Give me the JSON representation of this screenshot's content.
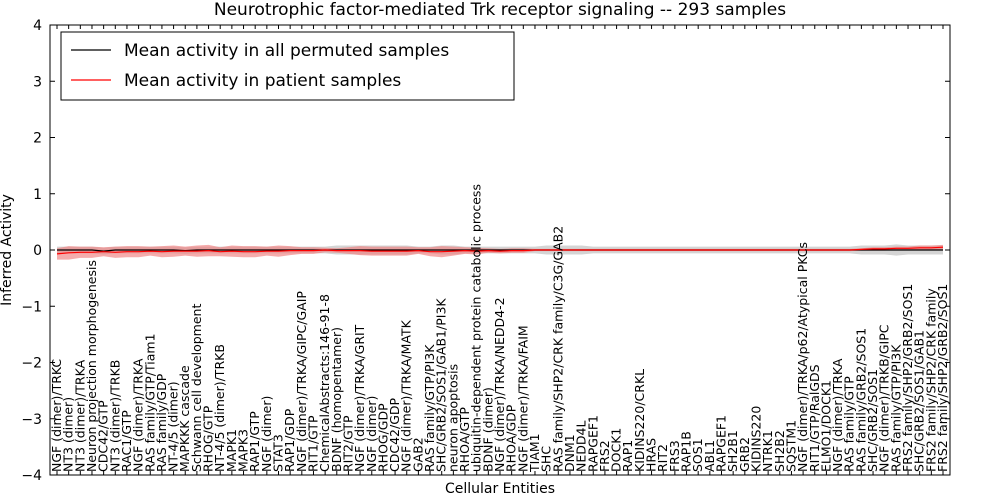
{
  "chart_data": {
    "type": "line",
    "title": "Neurotrophic factor-mediated Trk receptor signaling -- 293 samples",
    "xlabel": "Cellular Entities",
    "ylabel": "Inferred Activity",
    "ylim": [
      -4,
      4
    ],
    "yticks": [
      -4,
      -3,
      -2,
      -1,
      0,
      1,
      2,
      3,
      4
    ],
    "grid": false,
    "legend_position": "top-left",
    "colors": {
      "permuted": "#000000",
      "patient": "#ff0000",
      "patient_band": "#f08080",
      "permuted_band": "#b0b0b0"
    },
    "categories": [
      "NGF (dimer)/TRKC",
      "NT3 (dimer)",
      "NT3 (dimer)/TRKA",
      "Neuron projection morphogenesis",
      "CDC42/GTP",
      "NT3 (dimer)/TRKB",
      "RAC1/GTP",
      "NGF (dimer)/TRKA",
      "RAS family/GTP/Tiam1",
      "RAS family/GDP",
      "NT-4/5 (dimer)",
      "MAPKKK cascade",
      "Schwann cell development",
      "RHOG/GTP",
      "NT-4/5 (dimer)/TRKB",
      "MAPK1",
      "MAPK3",
      "RAP1/GTP",
      "NGF (dimer)",
      "STAT3",
      "RAP1/GDP",
      "NGF (dimer)/TRKA/GIPC/GAIP",
      "RIT1/GTP",
      "ChemicalAbstracts:146-91-8",
      "BDNF (homopentamer)",
      "RIT2/GTP",
      "NGF (dimer)/TRKA/GRIT",
      "NGF (dimer)",
      "RHOG/GDP",
      "CDC42/GDP",
      "NGF (dimer)/TRKA/MATK",
      "GAB2",
      "RAS family/GTP/PI3K",
      "SHC/GRB2/SOS1/GAB1/PI3K",
      "neuron apoptosis",
      "RHOA/GTP",
      "ubiquitin-dependent protein catabolic process",
      "BDNF (dimer)",
      "NGF (dimer)/TRKA/NEDD4-2",
      "RHOA/GDP",
      "NGF (dimer)/TRKA/FAIM",
      "TIAM1",
      "SHC",
      "RAS family/SHP2/CRK family/C3G/GAB2",
      "DNM1",
      "NEDD4L",
      "RAPGEF1",
      "FRS2",
      "DOCK1",
      "RAP1",
      "KIDINS220/CRKL",
      "HRAS",
      "RIT2",
      "FRS3",
      "RAP1B",
      "SOS1",
      "ABL1",
      "RAPGEF1",
      "SH2B1",
      "GRB2",
      "KIDINS220",
      "NTRK1",
      "SH2B2",
      "SQSTM1",
      "NGF (dimer)/TRKA/p62/Atypical PKCs",
      "RIT1/GTP/RalGDS",
      "ELMO1/DOCK1",
      "NGF (dimer)/TRKA",
      "RAS family/GTP",
      "RAS family/GRB2/SOS1",
      "SHC/GRB2/SOS1",
      "NGF (dimer)/TRKB/GIPC",
      "RAS family/GTP/PI3K",
      "FRS2 family/SHP2/GRB2/SOS1",
      "SHC/GRB2/SOS1/GAB1",
      "FRS2 family/SHP2/CRK family",
      "FRS2 family/SHP2/GRB2/SOS1"
    ],
    "series": [
      {
        "name": "Mean activity in all permuted samples",
        "values": [
          0.0,
          0.0,
          0.0,
          0.0,
          -0.02,
          0.0,
          0.0,
          0.0,
          0.0,
          0.0,
          0.0,
          -0.01,
          0.0,
          0.0,
          0.0,
          0.0,
          0.0,
          0.0,
          0.0,
          0.0,
          0.0,
          0.0,
          0.0,
          0.0,
          0.0,
          0.0,
          0.0,
          0.0,
          0.0,
          0.0,
          0.0,
          0.0,
          0.0,
          0.0,
          0.0,
          0.0,
          0.0,
          0.0,
          0.0,
          0.0,
          0.0,
          0.0,
          0.0,
          0.0,
          0.0,
          0.0,
          0.0,
          0.0,
          0.0,
          0.0,
          0.0,
          0.0,
          0.0,
          0.0,
          0.0,
          0.0,
          0.0,
          0.0,
          0.0,
          0.0,
          0.0,
          0.0,
          0.0,
          0.0,
          0.0,
          0.0,
          0.0,
          0.0,
          0.0,
          0.0,
          0.0,
          0.0,
          0.0,
          0.0,
          0.0,
          0.0,
          0.0
        ],
        "band": [
          0.06,
          0.06,
          0.06,
          0.06,
          0.06,
          0.06,
          0.06,
          0.06,
          0.06,
          0.06,
          0.06,
          0.06,
          0.06,
          0.06,
          0.06,
          0.06,
          0.06,
          0.06,
          0.06,
          0.06,
          0.06,
          0.06,
          0.06,
          0.06,
          0.08,
          0.08,
          0.08,
          0.08,
          0.08,
          0.08,
          0.08,
          0.06,
          0.06,
          0.08,
          0.08,
          0.06,
          0.06,
          0.06,
          0.06,
          0.06,
          0.06,
          0.06,
          0.08,
          0.08,
          0.08,
          0.08,
          0.06,
          0.06,
          0.06,
          0.06,
          0.06,
          0.06,
          0.06,
          0.06,
          0.06,
          0.06,
          0.06,
          0.06,
          0.06,
          0.06,
          0.06,
          0.06,
          0.06,
          0.06,
          0.06,
          0.06,
          0.06,
          0.06,
          0.06,
          0.08,
          0.08,
          0.08,
          0.1,
          0.08,
          0.08,
          0.08,
          0.08
        ]
      },
      {
        "name": "Mean activity in patient samples",
        "values": [
          -0.07,
          -0.05,
          -0.04,
          -0.04,
          -0.03,
          -0.04,
          -0.03,
          -0.03,
          -0.02,
          -0.03,
          -0.02,
          -0.02,
          -0.02,
          -0.01,
          -0.03,
          -0.02,
          -0.03,
          -0.03,
          -0.02,
          -0.02,
          -0.01,
          -0.01,
          -0.01,
          0.0,
          -0.01,
          -0.01,
          -0.01,
          -0.02,
          -0.02,
          -0.02,
          -0.02,
          -0.01,
          -0.03,
          -0.03,
          -0.02,
          -0.01,
          -0.02,
          -0.01,
          -0.02,
          -0.01,
          -0.01,
          0.0,
          0.0,
          0.0,
          0.0,
          0.0,
          0.0,
          0.0,
          0.0,
          0.0,
          0.0,
          0.0,
          0.0,
          0.0,
          0.0,
          0.0,
          0.0,
          0.0,
          0.0,
          0.0,
          0.0,
          0.0,
          0.0,
          0.0,
          0.0,
          0.0,
          0.0,
          0.0,
          0.0,
          0.01,
          0.02,
          0.02,
          0.03,
          0.03,
          0.04,
          0.04,
          0.05
        ],
        "band": [
          0.1,
          0.12,
          0.1,
          0.1,
          0.08,
          0.1,
          0.1,
          0.1,
          0.08,
          0.1,
          0.1,
          0.08,
          0.1,
          0.1,
          0.08,
          0.1,
          0.1,
          0.1,
          0.08,
          0.1,
          0.08,
          0.06,
          0.06,
          0.04,
          0.04,
          0.06,
          0.08,
          0.08,
          0.08,
          0.08,
          0.08,
          0.06,
          0.08,
          0.1,
          0.08,
          0.06,
          0.06,
          0.04,
          0.04,
          0.04,
          0.04,
          0.02,
          0.02,
          0.02,
          0.02,
          0.02,
          0.02,
          0.02,
          0.02,
          0.02,
          0.02,
          0.02,
          0.02,
          0.02,
          0.02,
          0.02,
          0.02,
          0.02,
          0.02,
          0.02,
          0.02,
          0.02,
          0.02,
          0.02,
          0.02,
          0.02,
          0.02,
          0.02,
          0.02,
          0.02,
          0.03,
          0.03,
          0.03,
          0.03,
          0.04,
          0.04,
          0.04
        ]
      }
    ]
  }
}
